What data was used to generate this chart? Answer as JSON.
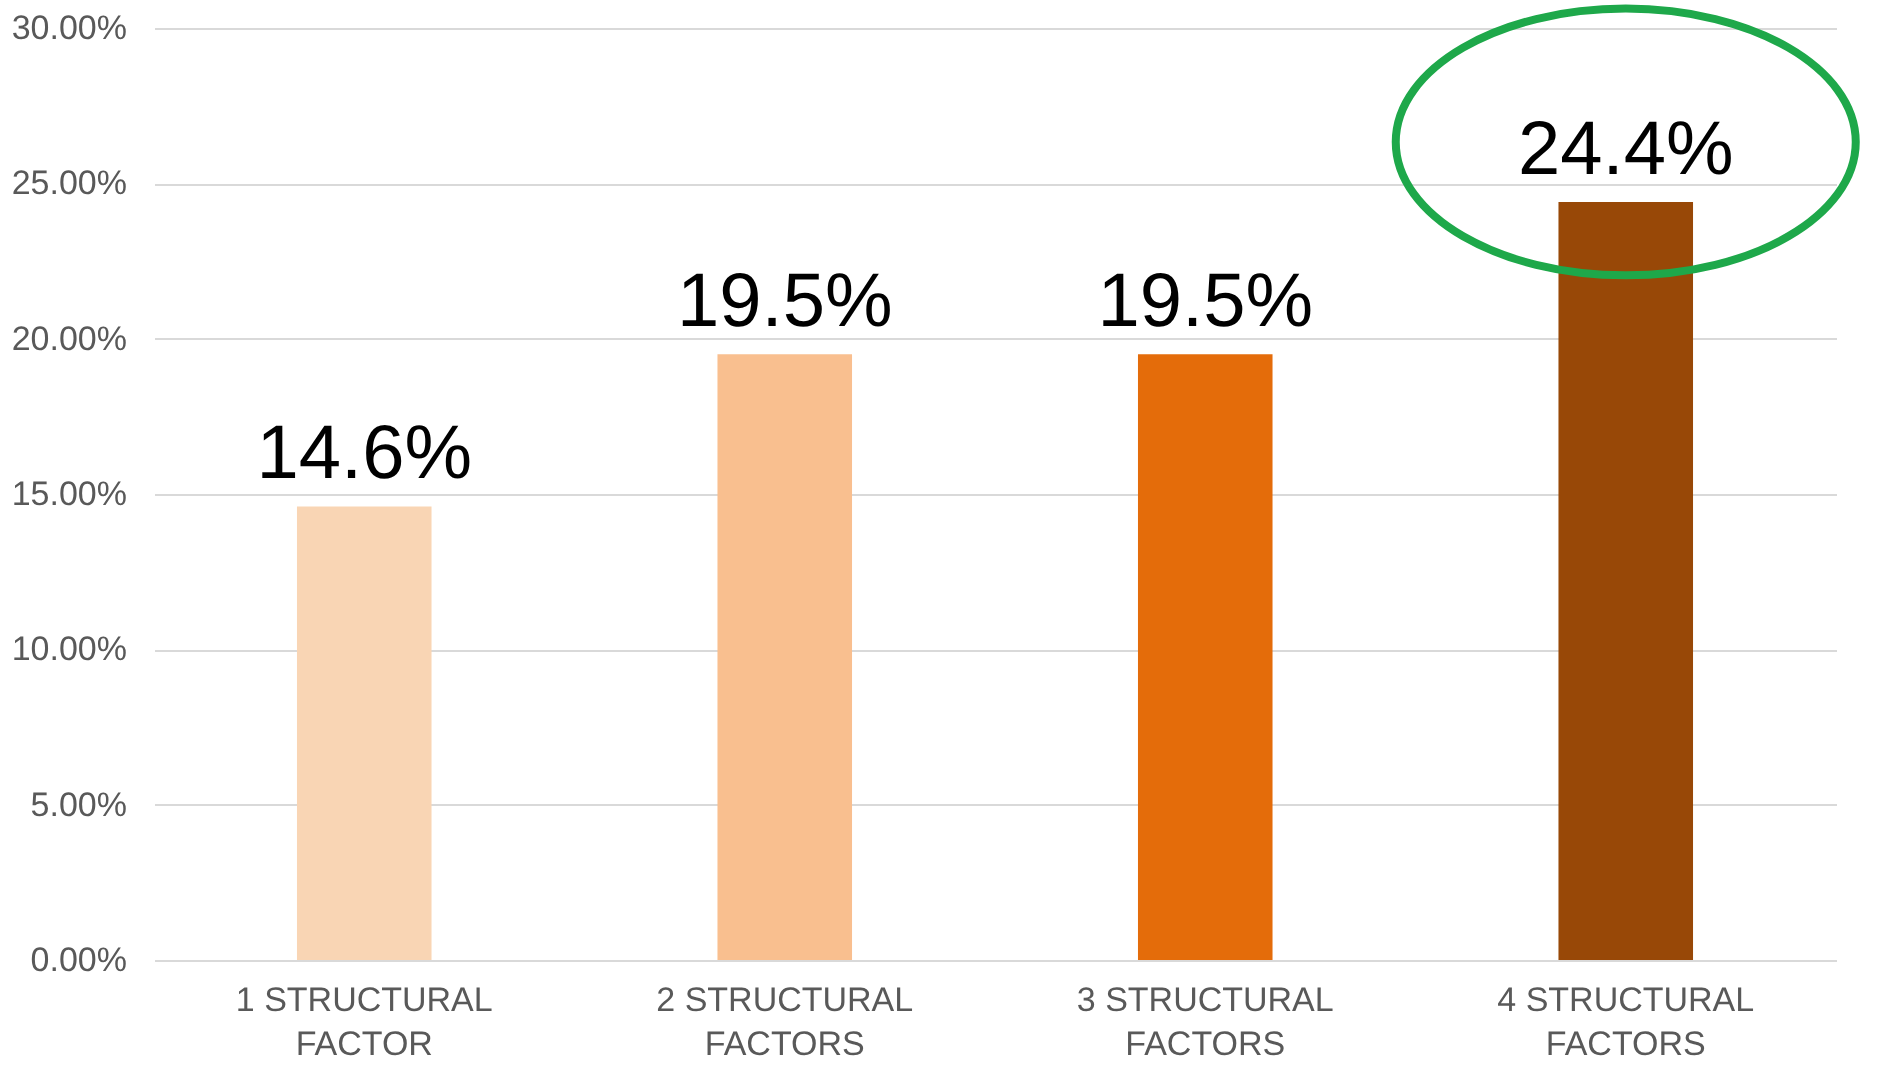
{
  "chart_data": {
    "type": "bar",
    "categories": [
      "1 STRUCTURAL\nFACTOR",
      "2 STRUCTURAL\nFACTORS",
      "3 STRUCTURAL\nFACTORS",
      "4 STRUCTURAL\nFACTORS"
    ],
    "values": [
      14.6,
      19.5,
      19.5,
      24.4
    ],
    "colors": [
      "#f9d5b4",
      "#f9bf8f",
      "#e46c0a",
      "#984807"
    ],
    "value_labels": [
      "14.6%",
      "19.5%",
      "19.5%",
      "24.4%"
    ],
    "ylim": [
      0,
      30
    ],
    "yticks": [
      {
        "value": 0,
        "label": "0.00%"
      },
      {
        "value": 5,
        "label": "5.00%"
      },
      {
        "value": 10,
        "label": "10.00%"
      },
      {
        "value": 15,
        "label": "15.00%"
      },
      {
        "value": 20,
        "label": "20.00%"
      },
      {
        "value": 25,
        "label": "25.00%"
      },
      {
        "value": 30,
        "label": "30.00%"
      }
    ],
    "grid": "y"
  }
}
